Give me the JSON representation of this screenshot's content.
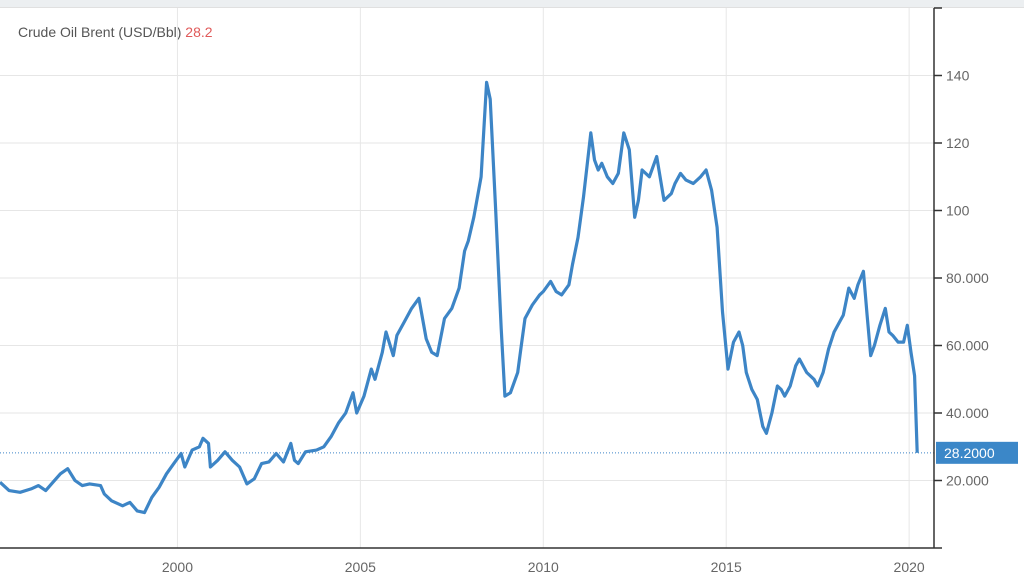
{
  "header": {
    "title": "Crude Oil Brent (USD/Bbl)",
    "last_value": "28.2"
  },
  "colors": {
    "line": "#3d85c6",
    "last_label_bg": "#3b87c8",
    "last_value_text": "#e05a5a",
    "grid": "#e6e6e6"
  },
  "chart_data": {
    "type": "line",
    "title": "Crude Oil Brent (USD/Bbl)",
    "xlabel": "",
    "ylabel": "",
    "xlim": [
      1995.15,
      2020.68
    ],
    "ylim": [
      0,
      160
    ],
    "x_ticks": [
      2000,
      2005,
      2010,
      2015,
      2020
    ],
    "x_tick_labels": [
      "2000",
      "2005",
      "2010",
      "2015",
      "2020"
    ],
    "y_ticks": [
      140,
      120,
      100,
      80,
      60,
      40,
      20
    ],
    "y_tick_labels": [
      "140",
      "120",
      "100",
      "80.000",
      "60.000",
      "40.000",
      "20.000"
    ],
    "grid": true,
    "axis_position": "right",
    "last_value_label": "28.2000",
    "last_value": 28.2,
    "series": [
      {
        "name": "Crude Oil Brent",
        "x": [
          1995.15,
          1995.4,
          1995.7,
          1996.0,
          1996.2,
          1996.4,
          1996.6,
          1996.8,
          1997.0,
          1997.2,
          1997.4,
          1997.6,
          1997.9,
          1998.0,
          1998.2,
          1998.5,
          1998.7,
          1998.9,
          1999.1,
          1999.3,
          1999.5,
          1999.7,
          1999.9,
          2000.1,
          2000.2,
          2000.4,
          2000.6,
          2000.7,
          2000.85,
          2000.9,
          2001.1,
          2001.3,
          2001.5,
          2001.7,
          2001.9,
          2002.1,
          2002.3,
          2002.5,
          2002.7,
          2002.9,
          2003.1,
          2003.2,
          2003.3,
          2003.5,
          2003.8,
          2004.0,
          2004.2,
          2004.4,
          2004.6,
          2004.8,
          2004.9,
          2005.1,
          2005.3,
          2005.4,
          2005.6,
          2005.7,
          2005.9,
          2006.0,
          2006.2,
          2006.4,
          2006.6,
          2006.8,
          2006.95,
          2007.1,
          2007.3,
          2007.5,
          2007.7,
          2007.85,
          2007.95,
          2008.1,
          2008.3,
          2008.45,
          2008.55,
          2008.7,
          2008.85,
          2008.95,
          2009.1,
          2009.3,
          2009.4,
          2009.5,
          2009.7,
          2009.9,
          2010.0,
          2010.2,
          2010.35,
          2010.5,
          2010.7,
          2010.8,
          2010.95,
          2011.1,
          2011.3,
          2011.4,
          2011.5,
          2011.6,
          2011.75,
          2011.9,
          2012.05,
          2012.2,
          2012.35,
          2012.5,
          2012.6,
          2012.7,
          2012.9,
          2013.1,
          2013.3,
          2013.5,
          2013.6,
          2013.75,
          2013.9,
          2014.1,
          2014.3,
          2014.45,
          2014.6,
          2014.75,
          2014.9,
          2015.05,
          2015.2,
          2015.35,
          2015.45,
          2015.55,
          2015.7,
          2015.85,
          2016.0,
          2016.1,
          2016.25,
          2016.4,
          2016.5,
          2016.6,
          2016.75,
          2016.9,
          2017.0,
          2017.2,
          2017.4,
          2017.5,
          2017.65,
          2017.8,
          2017.95,
          2018.1,
          2018.2,
          2018.35,
          2018.5,
          2018.6,
          2018.75,
          2018.85,
          2018.95,
          2019.05,
          2019.2,
          2019.35,
          2019.45,
          2019.55,
          2019.7,
          2019.85,
          2019.95,
          2020.05,
          2020.15,
          2020.22
        ],
        "values": [
          19.5,
          17,
          16.5,
          17.5,
          18.5,
          17,
          19.5,
          22,
          23.5,
          20,
          18.5,
          19,
          18.5,
          16,
          14,
          12.5,
          13.5,
          11,
          10.5,
          15,
          18,
          22,
          25,
          28,
          24,
          29,
          30,
          32.5,
          31,
          24,
          26,
          28.5,
          26,
          24,
          19,
          20.5,
          25,
          25.5,
          28,
          25.5,
          31,
          26,
          25,
          28.5,
          29,
          30,
          33,
          37,
          40,
          46,
          40,
          45,
          53,
          50,
          58,
          64,
          57,
          63,
          67,
          71,
          74,
          62,
          58,
          57,
          68,
          71,
          77,
          88,
          91,
          98,
          110,
          138,
          133,
          100,
          65,
          45,
          46,
          52,
          60,
          68,
          72,
          75,
          76,
          79,
          76,
          75,
          78,
          84,
          92,
          104,
          123,
          115,
          112,
          114,
          110,
          108,
          111,
          123,
          118,
          98,
          103,
          112,
          110,
          116,
          103,
          105,
          108,
          111,
          109,
          108,
          110,
          112,
          106,
          95,
          70,
          53,
          61,
          64,
          60,
          52,
          47,
          44,
          36,
          34,
          40,
          48,
          47,
          45,
          48,
          54,
          56,
          52,
          50,
          48,
          52,
          59,
          64,
          67,
          69,
          77,
          74,
          78,
          82,
          69,
          57,
          60,
          66,
          71,
          64,
          63,
          61,
          61,
          66,
          58,
          51,
          28.2
        ]
      }
    ]
  }
}
